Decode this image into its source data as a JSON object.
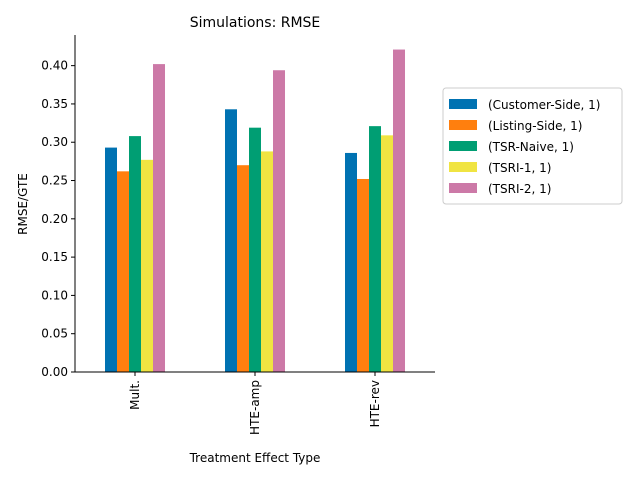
{
  "chart_data": {
    "type": "bar",
    "title": "Simulations: RMSE",
    "xlabel": "Treatment Effect Type",
    "ylabel": "RMSE/GTE",
    "categories": [
      "Mult.",
      "HTE-amp",
      "HTE-rev"
    ],
    "ylim": [
      0,
      0.44
    ],
    "yticks": [
      0.0,
      0.05,
      0.1,
      0.15,
      0.2,
      0.25,
      0.3,
      0.35,
      0.4
    ],
    "grid": false,
    "legend_position": "right",
    "series": [
      {
        "name": "(Customer-Side, 1)",
        "color": "#0072b2",
        "values": [
          0.293,
          0.343,
          0.286
        ]
      },
      {
        "name": "(Listing-Side, 1)",
        "color": "#ff7f0e",
        "values": [
          0.262,
          0.27,
          0.252
        ]
      },
      {
        "name": "(TSR-Naive, 1)",
        "color": "#009e73",
        "values": [
          0.308,
          0.319,
          0.321
        ]
      },
      {
        "name": "(TSRI-1, 1)",
        "color": "#f0e442",
        "values": [
          0.277,
          0.288,
          0.309
        ]
      },
      {
        "name": "(TSRI-2, 1)",
        "color": "#cc79a7",
        "values": [
          0.402,
          0.394,
          0.421
        ]
      }
    ]
  }
}
